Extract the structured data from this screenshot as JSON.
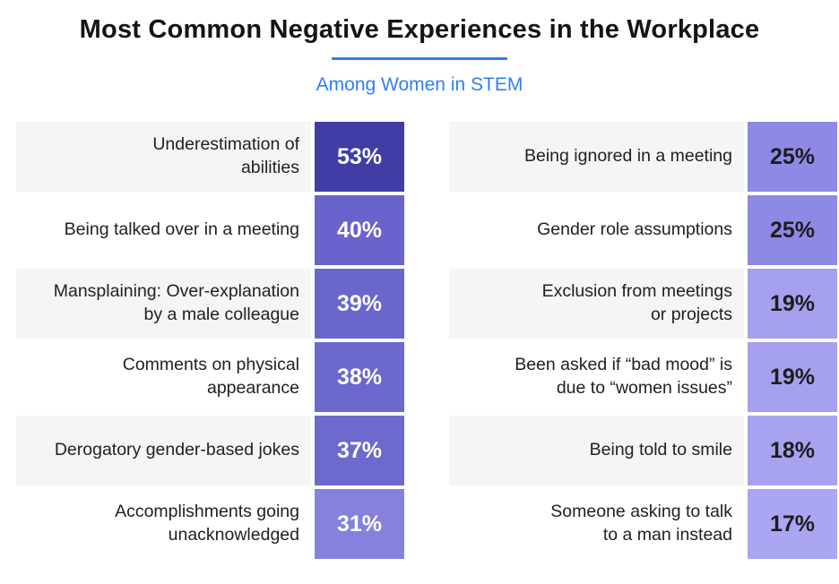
{
  "header": {
    "title": "Most Common Negative Experiences in the Workplace",
    "subtitle": "Among Women in STEM",
    "accent_color": "#2e80f0"
  },
  "chart_data": {
    "type": "bar",
    "title": "Most Common Negative Experiences in the Workplace",
    "subtitle": "Among Women in STEM",
    "unit": "%",
    "layout": "two-column label/value table, values shown as colored boxes, darker = higher",
    "columns": [
      {
        "rows": [
          {
            "label": "Underestimation of\nabilities",
            "value": 53,
            "value_label": "53%",
            "bg": "#423da4",
            "fg": "#ffffff"
          },
          {
            "label": "Being talked over in a meeting",
            "value": 40,
            "value_label": "40%",
            "bg": "#6963cb",
            "fg": "#ffffff"
          },
          {
            "label": "Mansplaining: Over-explanation\nby a male colleague",
            "value": 39,
            "value_label": "39%",
            "bg": "#6b66cc",
            "fg": "#ffffff"
          },
          {
            "label": "Comments on physical\nappearance",
            "value": 38,
            "value_label": "38%",
            "bg": "#6d68cd",
            "fg": "#ffffff"
          },
          {
            "label": "Derogatory gender-based jokes",
            "value": 37,
            "value_label": "37%",
            "bg": "#6e69ce",
            "fg": "#ffffff"
          },
          {
            "label": "Accomplishments going\nunacknowledged",
            "value": 31,
            "value_label": "31%",
            "bg": "#8681dd",
            "fg": "#ffffff"
          }
        ]
      },
      {
        "rows": [
          {
            "label": "Being ignored in a meeting",
            "value": 25,
            "value_label": "25%",
            "bg": "#8f89e6",
            "fg": "#1d1d1d"
          },
          {
            "label": "Gender role assumptions",
            "value": 25,
            "value_label": "25%",
            "bg": "#8f89e6",
            "fg": "#1d1d1d"
          },
          {
            "label": "Exclusion from meetings\nor projects",
            "value": 19,
            "value_label": "19%",
            "bg": "#a6a1ee",
            "fg": "#1d1d1d"
          },
          {
            "label": "Been asked if “bad mood” is\ndue to “women issues”",
            "value": 19,
            "value_label": "19%",
            "bg": "#a6a1ee",
            "fg": "#1d1d1d"
          },
          {
            "label": "Being told to smile",
            "value": 18,
            "value_label": "18%",
            "bg": "#a8a3ef",
            "fg": "#1d1d1d"
          },
          {
            "label": "Someone asking to talk\nto a man instead",
            "value": 17,
            "value_label": "17%",
            "bg": "#aba6f1",
            "fg": "#1d1d1d"
          }
        ]
      }
    ]
  }
}
